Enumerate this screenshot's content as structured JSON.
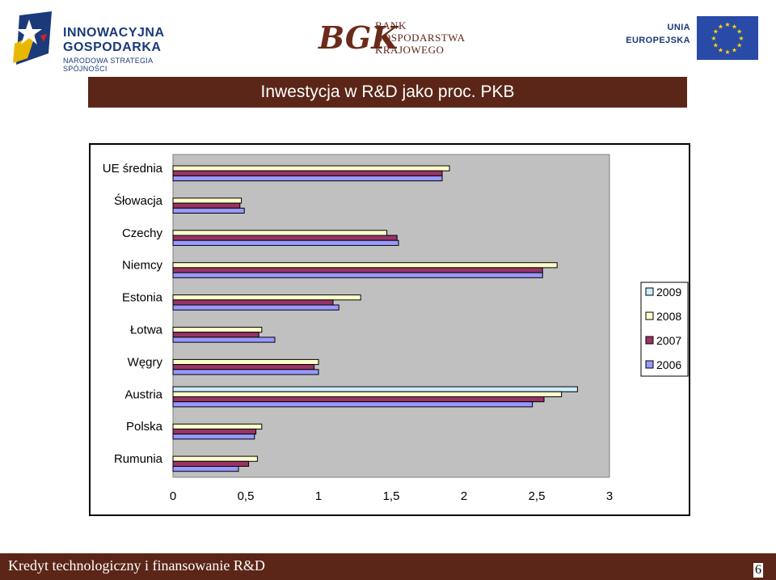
{
  "header": {
    "left_logo_line1": "INNOWACYJNA",
    "left_logo_line2": "GOSPODARKA",
    "left_logo_line3": "NARODOWA STRATEGIA SPÓJNOŚCI",
    "bank_line1": "BANK",
    "bank_line2": "GOSPODARSTWA",
    "bank_line3": "KRAJOWEGO",
    "bank_monogram": "BGK",
    "eu_line1": "UNIA",
    "eu_line2": "EUROPEJSKA"
  },
  "title": "Inwestycja w R&D jako proc. PKB",
  "footer": {
    "text": "Kredyt technologiczny i finansowanie R&D",
    "page": "6"
  },
  "colors": {
    "brand": "#5b2617",
    "plot_bg": "#c0c0c0",
    "s2009": "#ccecff",
    "s2008": "#ffffcc",
    "s2007": "#993366",
    "s2006": "#9999ff"
  },
  "chart_data": {
    "type": "bar",
    "orientation": "horizontal",
    "categories": [
      "UE średnia",
      "Śłowacja",
      "Czechy",
      "Niemcy",
      "Estonia",
      "Łotwa",
      "Węgry",
      "Austria",
      "Polska",
      "Rumunia"
    ],
    "series": [
      {
        "name": "2009",
        "values": [
          null,
          null,
          null,
          null,
          null,
          null,
          null,
          2.78,
          null,
          null
        ]
      },
      {
        "name": "2008",
        "values": [
          1.9,
          0.47,
          1.47,
          2.64,
          1.29,
          0.61,
          1.0,
          2.67,
          0.61,
          0.58
        ]
      },
      {
        "name": "2007",
        "values": [
          1.85,
          0.46,
          1.54,
          2.54,
          1.1,
          0.59,
          0.97,
          2.55,
          0.57,
          0.52
        ]
      },
      {
        "name": "2006",
        "values": [
          1.85,
          0.49,
          1.55,
          2.54,
          1.14,
          0.7,
          1.0,
          2.47,
          0.56,
          0.45
        ]
      }
    ],
    "xlim": [
      0,
      3
    ],
    "x_ticks": [
      "0",
      "0,5",
      "1",
      "1,5",
      "2",
      "2,5",
      "3"
    ],
    "legend_position": "right",
    "grid": false
  }
}
